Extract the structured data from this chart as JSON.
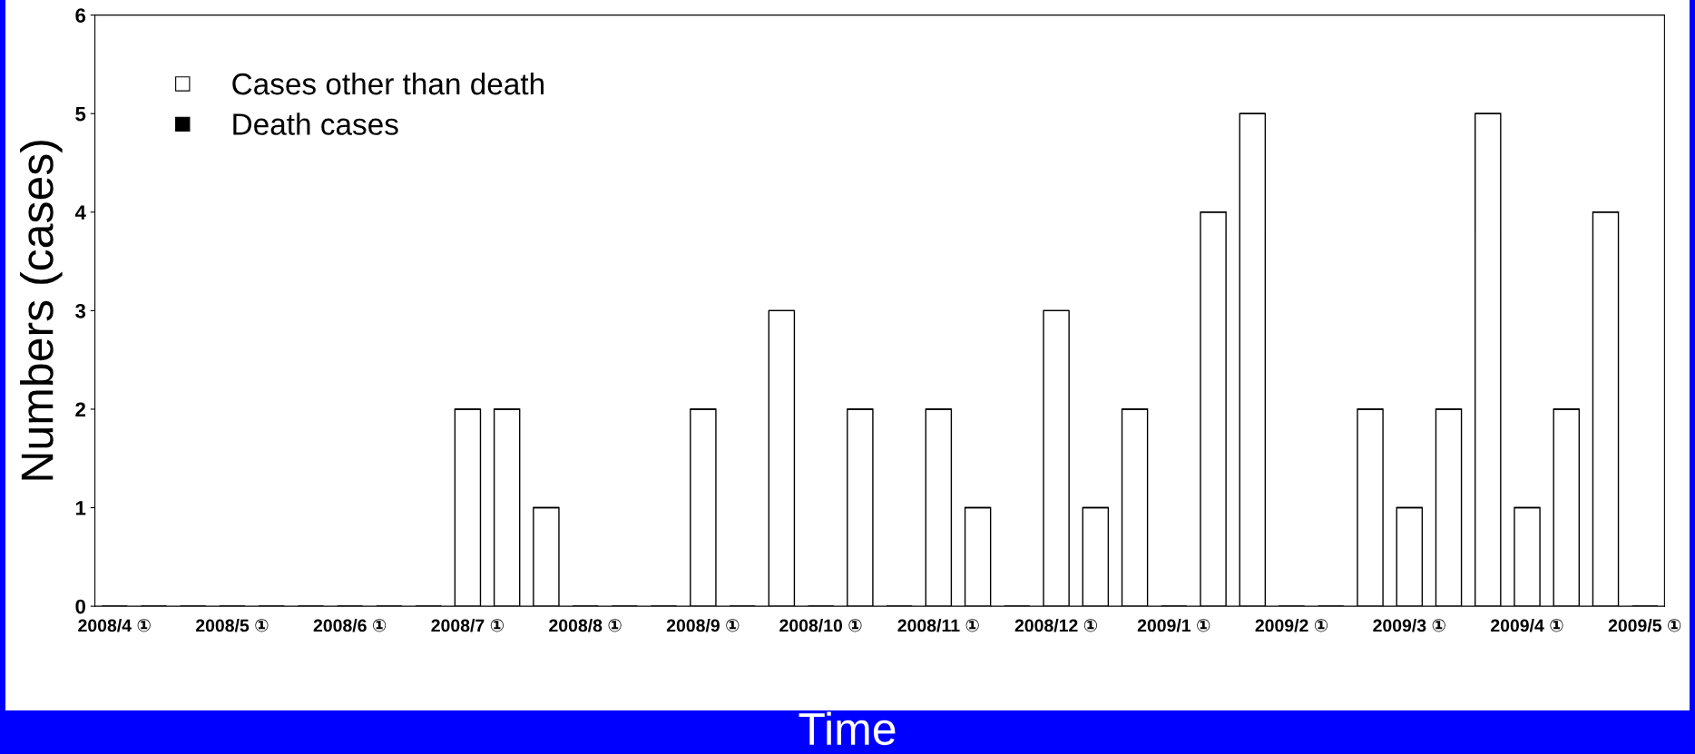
{
  "chart_data": {
    "type": "bar",
    "stacked": true,
    "xlabel": "Time",
    "ylabel": "Numbers (cases)",
    "categories": [
      "2008/4 ①",
      null,
      null,
      "2008/5 ①",
      null,
      null,
      "2008/6 ①",
      null,
      null,
      "2008/7 ①",
      null,
      null,
      "2008/8 ①",
      null,
      null,
      "2008/9 ①",
      null,
      null,
      "2008/10 ①",
      null,
      null,
      "2008/11 ①",
      null,
      null,
      "2008/12 ①",
      null,
      null,
      "2009/1 ①",
      null,
      null,
      "2009/2 ①",
      null,
      null,
      "2009/3 ①",
      null,
      null,
      "2009/4 ①",
      null,
      null,
      "2009/5 ①"
    ],
    "series": [
      {
        "name": "Cases other than death",
        "color": "#ffffff",
        "values": [
          0,
          0,
          0,
          0,
          0,
          0,
          0,
          0,
          0,
          2,
          2,
          1,
          0,
          0,
          0,
          2,
          0,
          3,
          0,
          2,
          0,
          2,
          1,
          0,
          3,
          1,
          2,
          0,
          4,
          5,
          0,
          0,
          2,
          1,
          2,
          5,
          1,
          2,
          4,
          0
        ]
      },
      {
        "name": "Death cases",
        "color": "#000000",
        "values": [
          0,
          0,
          0,
          0,
          0,
          0,
          0,
          0,
          0,
          0,
          0,
          0,
          0,
          0,
          0,
          0,
          0,
          0,
          0,
          0,
          0,
          0,
          0,
          0,
          0,
          0,
          0,
          0,
          0,
          0,
          0,
          0,
          0,
          0,
          0,
          0,
          0,
          0,
          0,
          0
        ]
      }
    ],
    "ylim": [
      0,
      6
    ],
    "yticks": [
      0,
      1,
      2,
      3,
      4,
      5,
      6
    ],
    "legend": "top left",
    "grid": false
  }
}
